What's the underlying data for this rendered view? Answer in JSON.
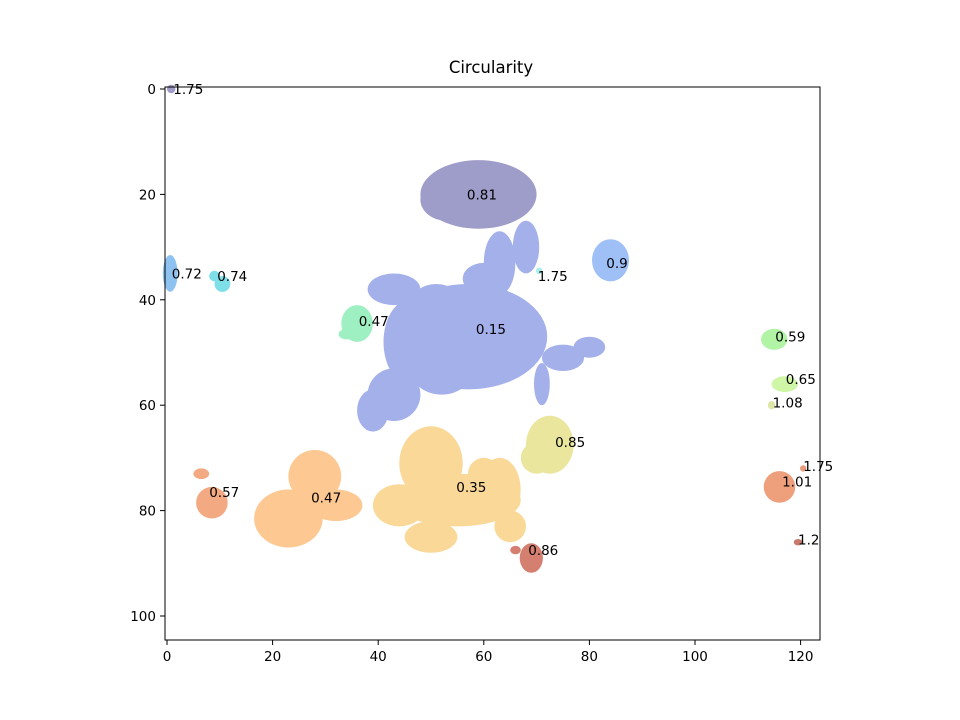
{
  "chart_data": {
    "type": "heatmap",
    "title": "Circularity",
    "xlabel": "",
    "ylabel": "",
    "xlim": [
      0,
      124
    ],
    "ylim": [
      0,
      104
    ],
    "y_inverted": true,
    "xticks": [
      0,
      20,
      40,
      60,
      80,
      100,
      120
    ],
    "yticks": [
      0,
      20,
      40,
      60,
      80,
      100
    ],
    "grid": false,
    "legend": "none",
    "regions": [
      {
        "label": "1.75",
        "color": "#a09cc8",
        "blobs": [
          [
            0.8,
            0,
            0.8,
            0.8
          ]
        ]
      },
      {
        "label": "0.81",
        "color": "#9e9cc8",
        "blobs": [
          [
            59,
            20,
            11,
            6.5
          ],
          [
            53,
            21,
            5,
            4
          ]
        ]
      },
      {
        "label": "0.9",
        "color": "#9fbff7",
        "blobs": [
          [
            84,
            32.5,
            3.5,
            4
          ]
        ]
      },
      {
        "label": "1.75",
        "color": "#a8ece8",
        "blobs": [
          [
            70.5,
            34.5,
            0.6,
            0.6
          ]
        ]
      },
      {
        "label": "0.72",
        "color": "#8ec3f1",
        "blobs": [
          [
            0.6,
            35,
            1.4,
            3.5
          ]
        ]
      },
      {
        "label": "0.74",
        "color": "#7fdfe8",
        "blobs": [
          [
            10.5,
            37,
            1.5,
            1.5
          ],
          [
            9,
            35.5,
            1,
            1
          ]
        ]
      },
      {
        "label": "0.47",
        "color": "#9ef0c3",
        "blobs": [
          [
            36,
            44.5,
            3,
            3.5
          ],
          [
            34,
            46.5,
            1.5,
            1
          ]
        ]
      },
      {
        "label": "0.15",
        "color": "#a4b0ea",
        "blobs": [
          [
            57,
            47,
            15,
            10
          ],
          [
            46,
            48,
            5,
            8
          ],
          [
            43,
            38,
            5,
            3
          ],
          [
            51,
            41,
            5,
            4
          ],
          [
            63,
            33,
            3,
            6
          ],
          [
            68,
            30,
            2.5,
            5
          ],
          [
            52,
            53,
            6,
            5
          ],
          [
            43,
            58,
            5,
            5
          ],
          [
            39,
            61,
            3,
            4
          ],
          [
            75,
            51,
            4,
            2.5
          ],
          [
            71,
            56,
            1.5,
            4
          ],
          [
            80,
            49,
            3,
            2
          ],
          [
            60,
            36,
            4,
            3
          ]
        ]
      },
      {
        "label": "0.59",
        "color": "#b1f4a6",
        "blobs": [
          [
            115,
            47.5,
            2.5,
            2
          ]
        ]
      },
      {
        "label": "0.65",
        "color": "#cff5a6",
        "blobs": [
          [
            117,
            56,
            2.5,
            1.5
          ]
        ]
      },
      {
        "label": "1.08",
        "color": "#dde6a4",
        "blobs": [
          [
            114.5,
            60,
            0.7,
            0.8
          ]
        ]
      },
      {
        "label": "0.85",
        "color": "#ebe69e",
        "blobs": [
          [
            72.5,
            67.5,
            4.5,
            5.5
          ],
          [
            70,
            70,
            3,
            3
          ]
        ]
      },
      {
        "label": "0.35",
        "color": "#fad898",
        "blobs": [
          [
            50,
            71,
            6,
            7
          ],
          [
            55,
            78,
            12,
            5
          ],
          [
            44,
            79,
            5,
            4
          ],
          [
            50,
            85,
            5,
            3
          ],
          [
            63,
            76,
            4,
            6
          ],
          [
            65,
            83,
            3,
            3
          ],
          [
            60,
            73,
            3,
            3
          ]
        ]
      },
      {
        "label": "0.47",
        "color": "#fdc891",
        "blobs": [
          [
            28,
            73.5,
            5,
            5
          ],
          [
            23,
            81.5,
            6.5,
            5.5
          ],
          [
            32,
            79,
            5,
            3
          ]
        ]
      },
      {
        "label": "0.57",
        "color": "#f3a982",
        "blobs": [
          [
            8.5,
            78.5,
            3,
            3
          ],
          [
            6.5,
            73,
            1.5,
            1
          ]
        ]
      },
      {
        "label": "1.75",
        "color": "#e99b7c",
        "blobs": [
          [
            120.5,
            72,
            0.6,
            0.6
          ]
        ]
      },
      {
        "label": "1.01",
        "color": "#ee9f7c",
        "blobs": [
          [
            116,
            75.5,
            3,
            3
          ]
        ]
      },
      {
        "label": "0.86",
        "color": "#d47f70",
        "blobs": [
          [
            69,
            89,
            2.2,
            2.8
          ],
          [
            66,
            87.5,
            1,
            0.8
          ]
        ]
      },
      {
        "label": "1.2",
        "color": "#c97a6c",
        "blobs": [
          [
            119.5,
            86,
            0.8,
            0.6
          ]
        ]
      }
    ],
    "annotations": [
      {
        "text": "1.75",
        "x": 1.2,
        "y": 0
      },
      {
        "text": "0.81",
        "x": 56.8,
        "y": 20
      },
      {
        "text": "0.9",
        "x": 83.2,
        "y": 33
      },
      {
        "text": "1.75",
        "x": 70.2,
        "y": 35.5
      },
      {
        "text": "0.72",
        "x": 0.9,
        "y": 35
      },
      {
        "text": "0.74",
        "x": 9.5,
        "y": 35.5
      },
      {
        "text": "0.47",
        "x": 36.3,
        "y": 44
      },
      {
        "text": "0.15",
        "x": 58.5,
        "y": 45.5
      },
      {
        "text": "0.59",
        "x": 115.2,
        "y": 47
      },
      {
        "text": "0.65",
        "x": 117.2,
        "y": 55
      },
      {
        "text": "1.08",
        "x": 114.7,
        "y": 59.5
      },
      {
        "text": "0.85",
        "x": 73.5,
        "y": 67
      },
      {
        "text": "1.75",
        "x": 120.5,
        "y": 71.5
      },
      {
        "text": "1.01",
        "x": 116.5,
        "y": 74.5
      },
      {
        "text": "0.57",
        "x": 8,
        "y": 76.5
      },
      {
        "text": "0.47",
        "x": 27.3,
        "y": 77.5
      },
      {
        "text": "0.35",
        "x": 54.8,
        "y": 75.5
      },
      {
        "text": "0.86",
        "x": 68.4,
        "y": 87.5
      },
      {
        "text": "1.2",
        "x": 119.5,
        "y": 85.5
      }
    ]
  }
}
